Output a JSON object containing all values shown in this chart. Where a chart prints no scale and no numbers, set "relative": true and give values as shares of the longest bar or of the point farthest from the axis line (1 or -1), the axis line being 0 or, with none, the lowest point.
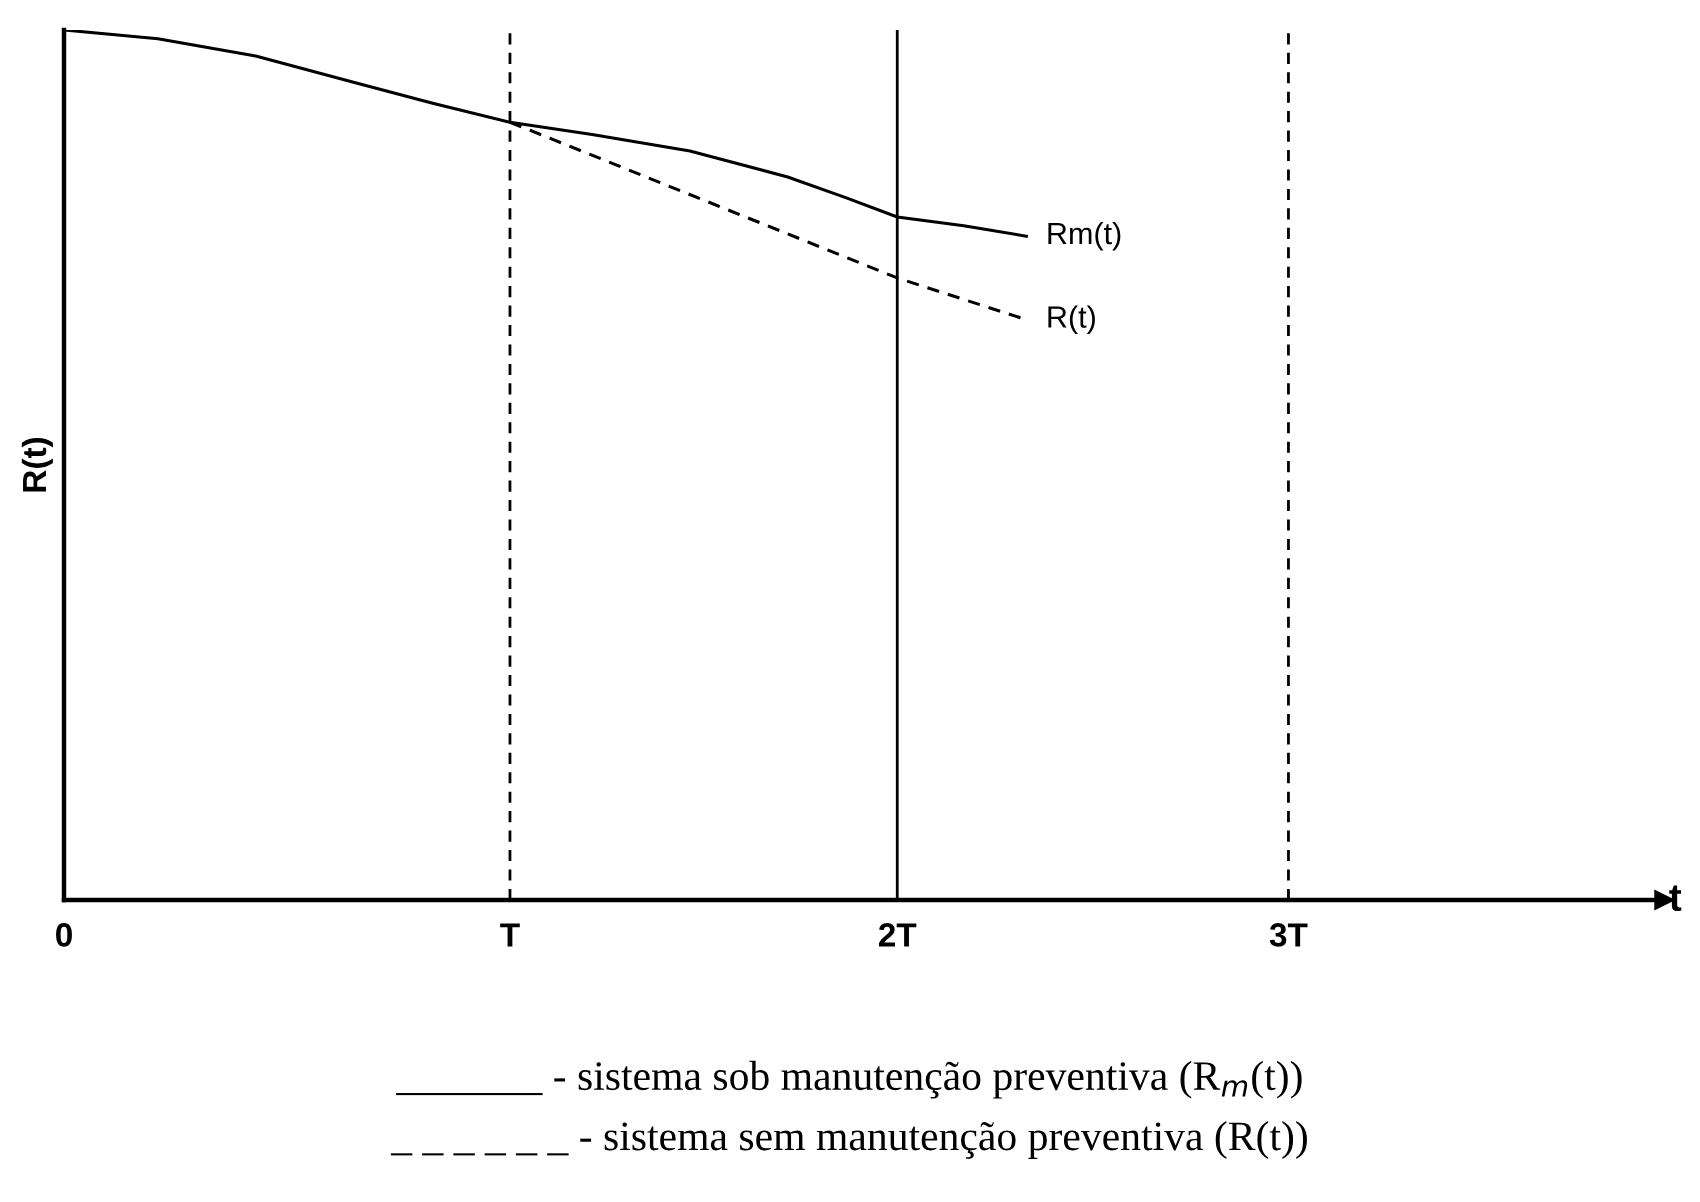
{
  "chart_data": {
    "type": "line",
    "relative": true,
    "ylabel": "R(t)",
    "xlabel": "t",
    "xlim": [
      0,
      4.09
    ],
    "xticks": [
      {
        "value": 0,
        "label": "0"
      },
      {
        "value": 1.14,
        "label": "T"
      },
      {
        "value": 2.13,
        "label": "2T"
      },
      {
        "value": 3.13,
        "label": "3T"
      }
    ],
    "series": [
      {
        "name": "Rm(t)",
        "color": "#000000",
        "line_style": "solid",
        "x": [
          0,
          0.24,
          0.49,
          0.74,
          0.94,
          1.14,
          1.35,
          1.6,
          1.85,
          2.0,
          2.13,
          2.3,
          2.46
        ],
        "values": [
          1,
          0.99,
          0.97,
          0.94,
          0.916,
          0.894,
          0.88,
          0.861,
          0.831,
          0.807,
          0.785,
          0.775,
          0.763
        ]
      },
      {
        "name": "R(t)",
        "color": "#000000",
        "line_style": "dashed",
        "x": [
          1.14,
          2.13,
          2.46
        ],
        "values": [
          0.894,
          0.715,
          0.667
        ]
      }
    ],
    "ref_lines": [
      {
        "axis": "x",
        "value": 1.14,
        "label": null,
        "line_style": "dashed",
        "color": "#000000"
      },
      {
        "axis": "x",
        "value": 2.13,
        "label": null,
        "line_style": "solid",
        "color": "#000000"
      },
      {
        "axis": "x",
        "value": 3.13,
        "label": null,
        "line_style": "dashed",
        "color": "#000000"
      }
    ],
    "grid": false,
    "legend": false,
    "marker": "none",
    "annotations": [
      "_______ - sistema sob manutenção preventiva (R$_{m}$(t))",
      "_ _ _ _ _ _ - sistema sem manutenção preventiva (R(t))"
    ]
  }
}
